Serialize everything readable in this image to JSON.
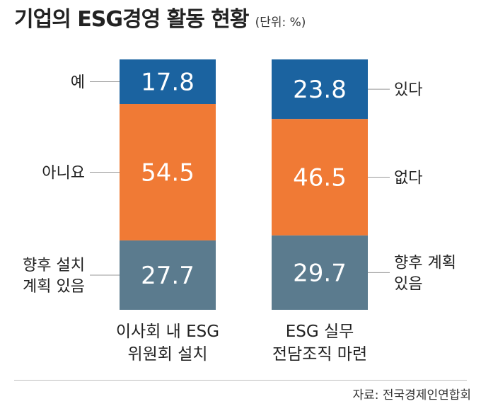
{
  "title": "기업의 ESG경영 활동 현황",
  "unit": "(단위: %)",
  "source": "자료: 전국경제인연합회",
  "colors": {
    "top": "#1b63a0",
    "middle": "#f07a35",
    "bottom": "#5b7b8e",
    "value_text": "#ffffff",
    "leader": "#999999"
  },
  "chart_data": {
    "type": "bar",
    "stacked": true,
    "ylim": [
      0,
      100
    ],
    "categories": [
      "이사회 내 ESG 위원회 설치",
      "ESG 실무 전담조직 마련"
    ],
    "category_label_lines": [
      [
        "이사회 내 ESG",
        "위원회 설치"
      ],
      [
        "ESG 실무",
        "전담조직 마련"
      ]
    ],
    "series": [
      {
        "name": "top",
        "values": [
          17.8,
          23.8
        ]
      },
      {
        "name": "middle",
        "values": [
          54.5,
          46.5
        ]
      },
      {
        "name": "bottom",
        "values": [
          27.7,
          29.7
        ]
      }
    ],
    "value_labels": [
      [
        "17.8",
        "54.5",
        "27.7"
      ],
      [
        "23.8",
        "46.5",
        "29.7"
      ]
    ],
    "segment_labels": [
      [
        [
          "예"
        ],
        [
          "아니요"
        ],
        [
          "향후 설치",
          "계획 있음"
        ]
      ],
      [
        [
          "있다"
        ],
        [
          "없다"
        ],
        [
          "향후 계획",
          "있음"
        ]
      ]
    ]
  }
}
